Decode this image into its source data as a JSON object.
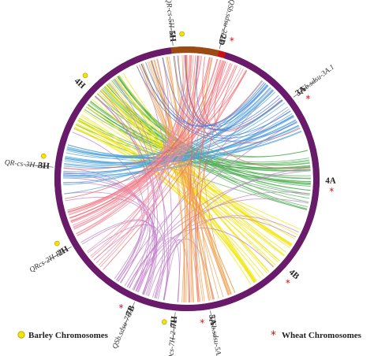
{
  "segments": [
    {
      "id": "2D",
      "label": "2D",
      "marker": "star",
      "color": "#cc1111",
      "a0": 356,
      "a1": 392
    },
    {
      "id": "3A",
      "label": "3A",
      "marker": "star",
      "color": "#1a2a8a",
      "a0": 395,
      "a1": 430
    },
    {
      "id": "4A",
      "label": "4A",
      "marker": "star",
      "color": "#1f7a1f",
      "a0": 433,
      "a1": 469
    },
    {
      "id": "4B",
      "label": "4B",
      "marker": "star",
      "color": "#f5a942",
      "a0": 472,
      "a1": 512
    },
    {
      "id": "5A",
      "label": "5A",
      "marker": "star",
      "color": "#9a4a12",
      "a0": 515,
      "a1": 545
    },
    {
      "id": "7B",
      "label": "7B",
      "marker": "star",
      "color": "#6a1a6a",
      "a0": 548,
      "a1": 578
    },
    {
      "id": "2H",
      "label": "2H",
      "marker": "circle",
      "color": "#cc1111",
      "a0": 581,
      "a1": 618
    },
    {
      "id": "3H",
      "label": "3H",
      "marker": "circle",
      "color": "#1a2a8a",
      "a0": 621,
      "a1": 649
    },
    {
      "id": "4H",
      "label": "4H",
      "marker": "circle",
      "color": "#1f7a1f",
      "a0": 652,
      "a1": 691
    },
    {
      "id": "5H",
      "label": "5H",
      "marker": "circle",
      "color": "#9a4a12",
      "a0": 694,
      "a1": 734
    },
    {
      "id": "7H",
      "label": "7H",
      "marker": "circle",
      "color": "#6a1a6a",
      "a0": 737,
      "a1": 353
    }
  ],
  "qtls": [
    {
      "label": "Qcs-7H-2-P1",
      "seg": "7H"
    },
    {
      "label": "QSb.sdsu-2D.1",
      "seg": "2D"
    },
    {
      "label": "QSb.sdsu-3A.1",
      "seg": "3A"
    },
    {
      "label": "QR-cs-5H-11",
      "seg": "5H"
    },
    {
      "label": "QR-cs-3H-P1",
      "seg": "3H"
    },
    {
      "label": "QRcs-2H-P7",
      "seg": "2H"
    },
    {
      "label": "QSb.sdsu-5A.1",
      "seg": "5A"
    },
    {
      "label": "QSb.sdsu-7B.1",
      "seg": "7B"
    }
  ],
  "links": [
    {
      "from": "4H",
      "to": "4A",
      "color": "#4caf50",
      "count": 34
    },
    {
      "from": "4H",
      "to": "4B",
      "color": "#f2e600",
      "count": 34
    },
    {
      "from": "7H",
      "to": "7B",
      "color": "#c07cc8",
      "count": 36
    },
    {
      "from": "5H",
      "to": "5A",
      "color": "#f0a050",
      "count": 30
    },
    {
      "from": "3H",
      "to": "3A",
      "color": "#4aa0d8",
      "count": 28
    },
    {
      "from": "2H",
      "to": "2D",
      "color": "#f28a9a",
      "count": 30
    },
    {
      "from": "7H",
      "to": "2D",
      "color": "#f06060",
      "count": 12
    },
    {
      "from": "5H",
      "to": "3A",
      "color": "#4a7ad8",
      "count": 10
    }
  ],
  "legend": {
    "barley": "Barley Chromosomes",
    "wheat": "Wheat Chromosomes",
    "barley_color": "#f2e600",
    "wheat_color": "#cc1111"
  }
}
